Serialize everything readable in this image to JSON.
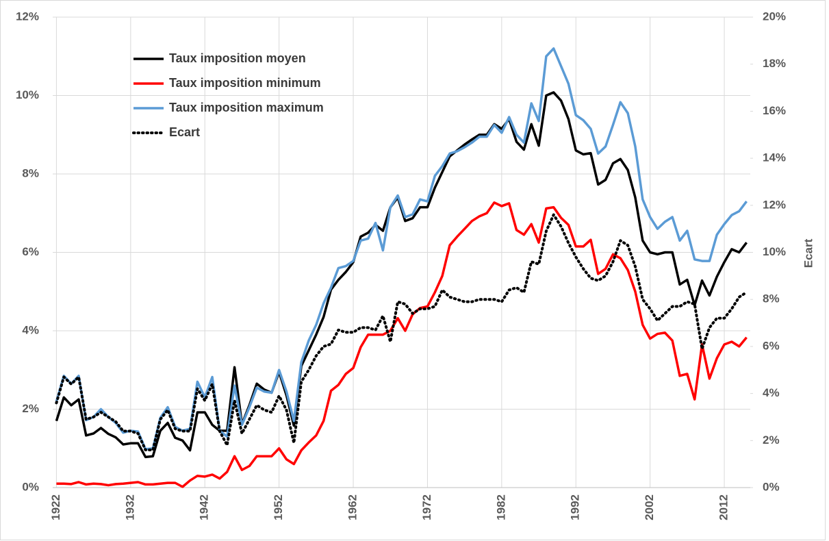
{
  "chart_data": {
    "type": "line",
    "x": [
      1922,
      1923,
      1924,
      1925,
      1926,
      1927,
      1928,
      1929,
      1930,
      1931,
      1932,
      1933,
      1934,
      1935,
      1936,
      1937,
      1938,
      1939,
      1940,
      1941,
      1942,
      1943,
      1944,
      1945,
      1946,
      1947,
      1948,
      1949,
      1950,
      1951,
      1952,
      1953,
      1954,
      1955,
      1956,
      1957,
      1958,
      1959,
      1960,
      1961,
      1962,
      1963,
      1964,
      1965,
      1966,
      1967,
      1968,
      1969,
      1970,
      1971,
      1972,
      1973,
      1974,
      1975,
      1976,
      1977,
      1978,
      1979,
      1980,
      1981,
      1982,
      1983,
      1984,
      1985,
      1986,
      1987,
      1988,
      1989,
      1990,
      1991,
      1992,
      1993,
      1994,
      1995,
      1996,
      1997,
      1998,
      1999,
      2000,
      2001,
      2002,
      2003,
      2004,
      2005,
      2006,
      2007,
      2008,
      2009,
      2010,
      2011,
      2012,
      2013,
      2014,
      2015
    ],
    "xlim": [
      1921.5,
      2015.5
    ],
    "xticks": [
      1922,
      1932,
      1942,
      1952,
      1962,
      1972,
      1982,
      1992,
      2002,
      2012
    ],
    "ylim": [
      0,
      12
    ],
    "yticks": [
      {
        "value": 0,
        "label": "0%"
      },
      {
        "value": 2,
        "label": "2%"
      },
      {
        "value": 4,
        "label": "4%"
      },
      {
        "value": 6,
        "label": "6%"
      },
      {
        "value": 8,
        "label": "8%"
      },
      {
        "value": 10,
        "label": "10%"
      },
      {
        "value": 12,
        "label": "12%"
      }
    ],
    "y2lim": [
      0,
      20
    ],
    "y2ticks": [
      {
        "value": 0,
        "label": "0%"
      },
      {
        "value": 2,
        "label": "2%"
      },
      {
        "value": 4,
        "label": "4%"
      },
      {
        "value": 6,
        "label": "6%"
      },
      {
        "value": 8,
        "label": "8%"
      },
      {
        "value": 10,
        "label": "10%"
      },
      {
        "value": 12,
        "label": "12%"
      },
      {
        "value": 14,
        "label": "14%"
      },
      {
        "value": 16,
        "label": "16%"
      },
      {
        "value": 18,
        "label": "18%"
      },
      {
        "value": 20,
        "label": "20%"
      }
    ],
    "y2label": "Ecart",
    "grid": true,
    "legend": "upper left",
    "series": [
      {
        "name": "Taux imposition moyen",
        "color": "#000000",
        "linestyle": "solid",
        "axis": "y",
        "values": [
          1.7,
          2.3,
          2.1,
          2.25,
          1.33,
          1.38,
          1.52,
          1.37,
          1.28,
          1.1,
          1.13,
          1.13,
          0.78,
          0.8,
          1.45,
          1.65,
          1.27,
          1.2,
          0.95,
          1.92,
          1.92,
          1.6,
          1.45,
          1.45,
          3.07,
          1.62,
          2.1,
          2.65,
          2.5,
          2.42,
          2.95,
          2.35,
          1.58,
          3.1,
          3.5,
          3.9,
          4.35,
          5.05,
          5.3,
          5.5,
          5.75,
          6.4,
          6.5,
          6.7,
          6.55,
          7.15,
          7.4,
          6.8,
          6.87,
          7.15,
          7.15,
          7.65,
          8.05,
          8.45,
          8.6,
          8.75,
          8.88,
          9.0,
          9.0,
          9.27,
          9.15,
          9.4,
          8.82,
          8.62,
          9.27,
          8.72,
          10.0,
          10.08,
          9.87,
          9.4,
          8.6,
          8.5,
          8.53,
          7.73,
          7.85,
          8.27,
          8.38,
          8.1,
          7.4,
          6.3,
          6.0,
          5.95,
          6.0,
          6.0,
          5.18,
          5.3,
          4.65,
          5.28,
          4.9,
          5.38,
          5.75,
          6.08,
          6.0,
          6.25
        ]
      },
      {
        "name": "Taux imposition minimum",
        "color": "#ff0000",
        "linestyle": "solid",
        "axis": "y",
        "values": [
          0.1,
          0.1,
          0.09,
          0.14,
          0.08,
          0.1,
          0.09,
          0.06,
          0.09,
          0.1,
          0.12,
          0.14,
          0.08,
          0.08,
          0.1,
          0.12,
          0.12,
          0.02,
          0.18,
          0.3,
          0.28,
          0.33,
          0.23,
          0.4,
          0.8,
          0.45,
          0.55,
          0.8,
          0.8,
          0.8,
          1.0,
          0.72,
          0.6,
          0.95,
          1.15,
          1.33,
          1.7,
          2.47,
          2.62,
          2.9,
          3.05,
          3.58,
          3.9,
          3.9,
          3.9,
          4.0,
          4.32,
          4.0,
          4.42,
          4.58,
          4.62,
          4.98,
          5.4,
          6.18,
          6.4,
          6.6,
          6.8,
          6.92,
          7.0,
          7.27,
          7.18,
          7.25,
          6.57,
          6.45,
          6.72,
          6.25,
          7.12,
          7.15,
          6.88,
          6.7,
          6.15,
          6.15,
          6.32,
          5.45,
          5.58,
          5.95,
          5.85,
          5.55,
          5.0,
          4.15,
          3.8,
          3.92,
          3.95,
          3.75,
          2.85,
          2.9,
          2.25,
          3.65,
          2.78,
          3.3,
          3.65,
          3.72,
          3.6,
          3.83
        ]
      },
      {
        "name": "Taux imposition maximum",
        "color": "#5b9bd5",
        "linestyle": "solid",
        "axis": "y",
        "values": [
          2.2,
          2.85,
          2.65,
          2.85,
          1.72,
          1.8,
          2.0,
          1.8,
          1.65,
          1.4,
          1.45,
          1.43,
          0.98,
          1.0,
          1.78,
          2.05,
          1.55,
          1.45,
          1.5,
          2.7,
          2.3,
          2.82,
          1.45,
          1.3,
          2.6,
          1.6,
          2.05,
          2.55,
          2.45,
          2.42,
          3.0,
          2.45,
          1.7,
          3.2,
          3.75,
          4.15,
          4.7,
          5.1,
          5.6,
          5.65,
          5.78,
          6.3,
          6.35,
          6.75,
          6.05,
          7.15,
          7.45,
          6.9,
          6.97,
          7.35,
          7.3,
          7.95,
          8.2,
          8.52,
          8.58,
          8.68,
          8.8,
          8.95,
          8.95,
          9.25,
          9.05,
          9.45,
          9.0,
          8.8,
          9.8,
          9.35,
          11.0,
          11.2,
          10.75,
          10.3,
          9.5,
          9.37,
          9.15,
          8.52,
          8.7,
          9.25,
          9.83,
          9.55,
          8.7,
          7.35,
          6.9,
          6.6,
          6.78,
          6.9,
          6.3,
          6.55,
          5.82,
          5.78,
          5.78,
          6.45,
          6.72,
          6.95,
          7.05,
          7.3
        ]
      },
      {
        "name": "Ecart",
        "color": "#000000",
        "linestyle": "dotted",
        "axis": "y2",
        "values": [
          3.6,
          4.7,
          4.4,
          4.7,
          2.9,
          3.0,
          3.2,
          3.0,
          2.8,
          2.4,
          2.4,
          2.3,
          1.6,
          1.6,
          2.9,
          3.3,
          2.5,
          2.4,
          2.4,
          4.2,
          3.7,
          4.4,
          2.4,
          1.8,
          3.7,
          2.3,
          2.9,
          3.5,
          3.3,
          3.2,
          3.9,
          3.3,
          1.9,
          4.5,
          5.0,
          5.6,
          6.0,
          6.1,
          6.7,
          6.6,
          6.6,
          6.8,
          6.8,
          6.7,
          7.3,
          6.2,
          7.9,
          7.8,
          7.4,
          7.6,
          7.6,
          7.7,
          8.4,
          8.1,
          8.0,
          7.9,
          7.9,
          8.0,
          8.0,
          8.0,
          7.9,
          8.4,
          8.5,
          8.3,
          9.6,
          9.5,
          10.9,
          11.6,
          11.1,
          10.4,
          9.8,
          9.3,
          8.9,
          8.8,
          9.0,
          9.6,
          10.5,
          10.3,
          9.4,
          8.0,
          7.6,
          7.1,
          7.4,
          7.7,
          7.7,
          7.9,
          7.8,
          5.9,
          6.8,
          7.2,
          7.2,
          7.6,
          8.1,
          8.3
        ]
      }
    ]
  }
}
